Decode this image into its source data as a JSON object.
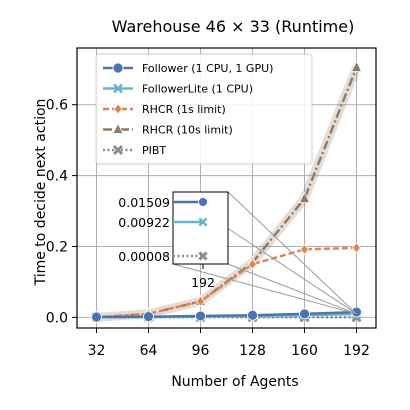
{
  "chart_data": {
    "type": "line",
    "title": "Warehouse 46 × 33  (Runtime)",
    "xlabel": "Number of Agents",
    "ylabel": "Time to decide next action",
    "x": [
      32,
      64,
      96,
      128,
      160,
      192
    ],
    "x_ticks": [
      "32",
      "64",
      "96",
      "128",
      "160",
      "192"
    ],
    "ylim": [
      -0.03,
      0.76
    ],
    "y_ticks": [
      "0.0",
      "0.2",
      "0.4",
      "0.6"
    ],
    "grid": true,
    "legend_position": "top-left",
    "series": [
      {
        "name": "Follower (1 CPU, 1 GPU)",
        "color": "#4c72b0",
        "marker": "circle",
        "dash": "solid",
        "values": [
          0.001,
          0.002,
          0.004,
          0.006,
          0.01,
          0.01509
        ]
      },
      {
        "name": "FollowerLite (1 CPU)",
        "color": "#64b5cd",
        "marker": "x",
        "dash": "solid",
        "values": [
          0.0005,
          0.001,
          0.002,
          0.004,
          0.006,
          0.00922
        ]
      },
      {
        "name": "RHCR (1s limit)",
        "color": "#dd8452",
        "marker": "diamond",
        "dash": "dashed",
        "values": [
          0.0,
          0.01,
          0.045,
          0.15,
          0.192,
          0.196
        ]
      },
      {
        "name": "RHCR (10s limit)",
        "color": "#937860",
        "marker": "triangle",
        "dash": "dashdot",
        "values": [
          0.0,
          0.01,
          0.045,
          0.155,
          0.335,
          0.705
        ]
      },
      {
        "name": "PIBT",
        "color": "#8c8c8c",
        "marker": "x-thick",
        "dash": "dotted",
        "values": [
          0.0001,
          0.0001,
          0.0001,
          0.0001,
          0.0001,
          8e-05
        ]
      }
    ],
    "inset": {
      "x_tick": "192",
      "labels": [
        "0.01509",
        "0.00922",
        "0.00008"
      ]
    }
  }
}
